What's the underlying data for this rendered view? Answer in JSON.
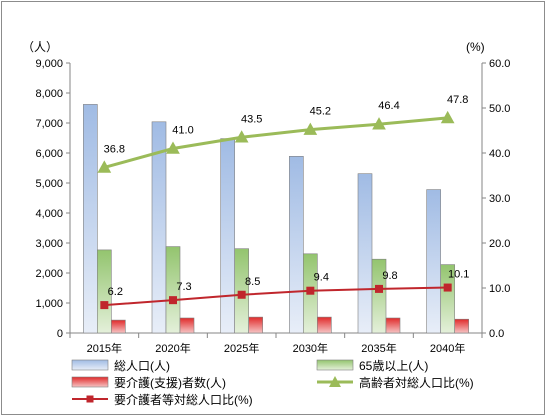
{
  "chart_data": {
    "type": "bar",
    "categories": [
      "2015年",
      "2020年",
      "2025年",
      "2030年",
      "2035年",
      "2040年"
    ],
    "y_left": {
      "unit": "（人）",
      "ylim": [
        0,
        9000
      ],
      "ticks": [
        "0",
        "1,000",
        "2,000",
        "3,000",
        "4,000",
        "5,000",
        "6,000",
        "7,000",
        "8,000",
        "9,000"
      ]
    },
    "y_right": {
      "unit": "(%)",
      "ylim": [
        0,
        60
      ],
      "ticks": [
        "0.0",
        "10.0",
        "20.0",
        "30.0",
        "40.0",
        "50.0",
        "60.0"
      ]
    },
    "bar_series": [
      {
        "name": "総人口(人)",
        "values": [
          7620,
          7040,
          6480,
          5890,
          5310,
          4780
        ],
        "color": "#a7bfe2"
      },
      {
        "name": "65歳以上(人)",
        "values": [
          2770,
          2880,
          2810,
          2640,
          2460,
          2280
        ],
        "color": "#9bc47a"
      },
      {
        "name": "要介護(支援)者数(人)",
        "values": [
          430,
          500,
          530,
          530,
          500,
          460
        ],
        "color": "#e33b3b"
      }
    ],
    "line_series": [
      {
        "name": "高齢者対総人口比(%)",
        "values": [
          36.8,
          41.0,
          43.5,
          45.2,
          46.4,
          47.8
        ],
        "labels": [
          "36.8",
          "41.0",
          "43.5",
          "45.2",
          "46.4",
          "47.8"
        ],
        "color": "#9bbb59"
      },
      {
        "name": "要介護者等対総人口比(%)",
        "values": [
          6.2,
          7.3,
          8.5,
          9.4,
          9.8,
          10.1
        ],
        "labels": [
          "6.2",
          "7.3",
          "8.5",
          "9.4",
          "9.8",
          "10.1"
        ],
        "color": "#c0262c"
      }
    ],
    "legend_position": "bottom",
    "grid": false
  }
}
